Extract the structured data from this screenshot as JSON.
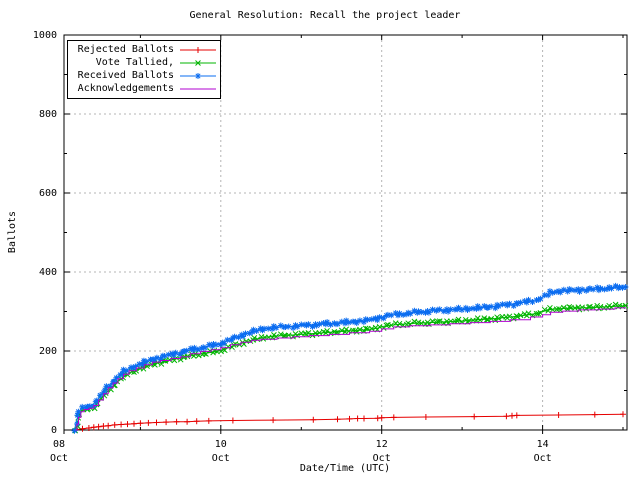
{
  "chart_data": {
    "type": "line",
    "title": "General Resolution: Recall the project leader",
    "xlabel": "Date/Time (UTC)",
    "ylabel": "Ballots",
    "x_unit": "day of October (UTC)",
    "xlim": [
      8.05,
      15.05
    ],
    "ylim": [
      0,
      1000
    ],
    "grid": true,
    "grid_color": "#b4b4b4",
    "frame_color": "#000000",
    "legend_position": "top-left",
    "xticks": [
      {
        "value": 8,
        "day": "08",
        "month": "Oct"
      },
      {
        "value": 10,
        "day": "10",
        "month": "Oct"
      },
      {
        "value": 12,
        "day": "12",
        "month": "Oct"
      },
      {
        "value": 14,
        "day": "14",
        "month": "Oct"
      }
    ],
    "xticks_minor": [
      9,
      11,
      13,
      15
    ],
    "yticks": [
      0,
      200,
      400,
      600,
      800,
      1000
    ],
    "yticks_minor": [
      100,
      300,
      500,
      700,
      900
    ],
    "series": [
      {
        "name": "Rejected Ballots",
        "color": "#e60000",
        "marker": "plus",
        "dense": false,
        "style": "line",
        "points": [
          [
            8.2,
            1
          ],
          [
            8.28,
            3
          ],
          [
            8.36,
            5
          ],
          [
            8.42,
            7
          ],
          [
            8.48,
            8
          ],
          [
            8.54,
            10
          ],
          [
            8.6,
            11
          ],
          [
            8.68,
            13
          ],
          [
            8.76,
            14
          ],
          [
            8.84,
            15
          ],
          [
            8.92,
            16
          ],
          [
            9.0,
            17
          ],
          [
            9.1,
            18
          ],
          [
            9.2,
            19
          ],
          [
            9.32,
            20
          ],
          [
            9.45,
            21
          ],
          [
            9.58,
            21
          ],
          [
            9.7,
            22
          ],
          [
            9.85,
            23
          ],
          [
            10.15,
            24
          ],
          [
            10.65,
            25
          ],
          [
            11.15,
            26
          ],
          [
            11.45,
            27
          ],
          [
            11.6,
            28
          ],
          [
            11.7,
            29
          ],
          [
            11.78,
            29
          ],
          [
            11.95,
            30
          ],
          [
            12.0,
            31
          ],
          [
            12.15,
            32
          ],
          [
            12.55,
            33
          ],
          [
            13.15,
            34
          ],
          [
            13.55,
            35
          ],
          [
            13.62,
            36
          ],
          [
            13.68,
            37
          ],
          [
            14.2,
            38
          ],
          [
            14.65,
            39
          ],
          [
            15.0,
            40
          ]
        ]
      },
      {
        "name": "Vote Tallied,",
        "color": "#00b400",
        "marker": "cross",
        "dense": true,
        "style": "line",
        "points": [
          [
            8.19,
            0
          ],
          [
            8.21,
            12
          ],
          [
            8.23,
            28
          ],
          [
            8.25,
            42
          ],
          [
            8.28,
            49
          ],
          [
            8.33,
            52
          ],
          [
            8.39,
            55
          ],
          [
            8.45,
            63
          ],
          [
            8.51,
            78
          ],
          [
            8.57,
            93
          ],
          [
            8.63,
            106
          ],
          [
            8.69,
            117
          ],
          [
            8.75,
            128
          ],
          [
            8.81,
            138
          ],
          [
            8.88,
            146
          ],
          [
            8.96,
            152
          ],
          [
            9.06,
            160
          ],
          [
            9.16,
            167
          ],
          [
            9.25,
            171
          ],
          [
            9.36,
            176
          ],
          [
            9.46,
            181
          ],
          [
            9.56,
            185
          ],
          [
            9.66,
            189
          ],
          [
            9.76,
            193
          ],
          [
            9.86,
            196
          ],
          [
            9.96,
            199
          ],
          [
            10.06,
            206
          ],
          [
            10.16,
            213
          ],
          [
            10.26,
            220
          ],
          [
            10.36,
            226
          ],
          [
            10.46,
            231
          ],
          [
            10.56,
            235
          ],
          [
            10.7,
            238
          ],
          [
            10.85,
            240
          ],
          [
            11.0,
            242
          ],
          [
            11.2,
            245
          ],
          [
            11.4,
            248
          ],
          [
            11.6,
            251
          ],
          [
            11.8,
            254
          ],
          [
            11.95,
            258
          ],
          [
            12.05,
            264
          ],
          [
            12.2,
            267
          ],
          [
            12.4,
            270
          ],
          [
            12.6,
            272
          ],
          [
            12.8,
            274
          ],
          [
            13.0,
            276
          ],
          [
            13.2,
            279
          ],
          [
            13.4,
            282
          ],
          [
            13.6,
            286
          ],
          [
            13.8,
            291
          ],
          [
            13.95,
            296
          ],
          [
            14.02,
            301
          ],
          [
            14.1,
            305
          ],
          [
            14.2,
            307
          ],
          [
            14.4,
            309
          ],
          [
            14.6,
            310
          ],
          [
            14.8,
            312
          ],
          [
            15.0,
            314
          ],
          [
            15.03,
            315
          ]
        ]
      },
      {
        "name": "Received Ballots",
        "color": "#0a6cf0",
        "marker": "star",
        "dense": true,
        "style": "line",
        "points": [
          [
            8.18,
            0
          ],
          [
            8.2,
            18
          ],
          [
            8.22,
            35
          ],
          [
            8.24,
            48
          ],
          [
            8.27,
            54
          ],
          [
            8.32,
            57
          ],
          [
            8.38,
            60
          ],
          [
            8.44,
            70
          ],
          [
            8.5,
            85
          ],
          [
            8.56,
            101
          ],
          [
            8.62,
            115
          ],
          [
            8.68,
            126
          ],
          [
            8.74,
            138
          ],
          [
            8.8,
            148
          ],
          [
            8.87,
            157
          ],
          [
            8.95,
            163
          ],
          [
            9.05,
            171
          ],
          [
            9.15,
            179
          ],
          [
            9.24,
            183
          ],
          [
            9.35,
            189
          ],
          [
            9.45,
            194
          ],
          [
            9.55,
            199
          ],
          [
            9.65,
            204
          ],
          [
            9.75,
            208
          ],
          [
            9.85,
            212
          ],
          [
            9.95,
            216
          ],
          [
            10.05,
            223
          ],
          [
            10.15,
            231
          ],
          [
            10.25,
            239
          ],
          [
            10.35,
            246
          ],
          [
            10.45,
            252
          ],
          [
            10.55,
            257
          ],
          [
            10.7,
            260
          ],
          [
            10.85,
            262
          ],
          [
            11.0,
            264
          ],
          [
            11.2,
            267
          ],
          [
            11.4,
            270
          ],
          [
            11.6,
            273
          ],
          [
            11.8,
            277
          ],
          [
            11.95,
            282
          ],
          [
            12.05,
            289
          ],
          [
            12.2,
            293
          ],
          [
            12.4,
            297
          ],
          [
            12.6,
            301
          ],
          [
            12.8,
            304
          ],
          [
            13.0,
            306
          ],
          [
            13.2,
            309
          ],
          [
            13.4,
            313
          ],
          [
            13.6,
            318
          ],
          [
            13.8,
            324
          ],
          [
            13.95,
            331
          ],
          [
            14.02,
            338
          ],
          [
            14.1,
            347
          ],
          [
            14.2,
            352
          ],
          [
            14.4,
            354
          ],
          [
            14.6,
            356
          ],
          [
            14.8,
            359
          ],
          [
            15.0,
            361
          ],
          [
            15.03,
            362
          ]
        ]
      },
      {
        "name": "Acknowledgements",
        "color": "#b000d0",
        "marker": "none",
        "dense": false,
        "style": "steps",
        "points": [
          [
            8.19,
            0
          ],
          [
            8.21,
            15
          ],
          [
            8.23,
            32
          ],
          [
            8.26,
            46
          ],
          [
            8.3,
            52
          ],
          [
            8.36,
            55
          ],
          [
            8.42,
            62
          ],
          [
            8.48,
            76
          ],
          [
            8.54,
            92
          ],
          [
            8.6,
            107
          ],
          [
            8.66,
            119
          ],
          [
            8.72,
            130
          ],
          [
            8.79,
            141
          ],
          [
            8.86,
            150
          ],
          [
            8.95,
            157
          ],
          [
            9.05,
            165
          ],
          [
            9.15,
            172
          ],
          [
            9.25,
            176
          ],
          [
            9.38,
            181
          ],
          [
            9.5,
            185
          ],
          [
            9.62,
            193
          ],
          [
            9.75,
            199
          ],
          [
            9.88,
            203
          ],
          [
            10.0,
            208
          ],
          [
            10.12,
            216
          ],
          [
            10.25,
            222
          ],
          [
            10.38,
            227
          ],
          [
            10.5,
            230
          ],
          [
            10.7,
            233
          ],
          [
            10.9,
            236
          ],
          [
            11.1,
            239
          ],
          [
            11.35,
            242
          ],
          [
            11.6,
            246
          ],
          [
            11.85,
            250
          ],
          [
            12.0,
            256
          ],
          [
            12.15,
            261
          ],
          [
            12.35,
            264
          ],
          [
            12.6,
            266
          ],
          [
            12.85,
            269
          ],
          [
            13.1,
            272
          ],
          [
            13.35,
            275
          ],
          [
            13.6,
            279
          ],
          [
            13.85,
            286
          ],
          [
            14.0,
            292
          ],
          [
            14.1,
            298
          ],
          [
            14.25,
            301
          ],
          [
            14.45,
            304
          ],
          [
            14.7,
            306
          ],
          [
            14.9,
            309
          ],
          [
            15.03,
            311
          ]
        ]
      }
    ]
  }
}
